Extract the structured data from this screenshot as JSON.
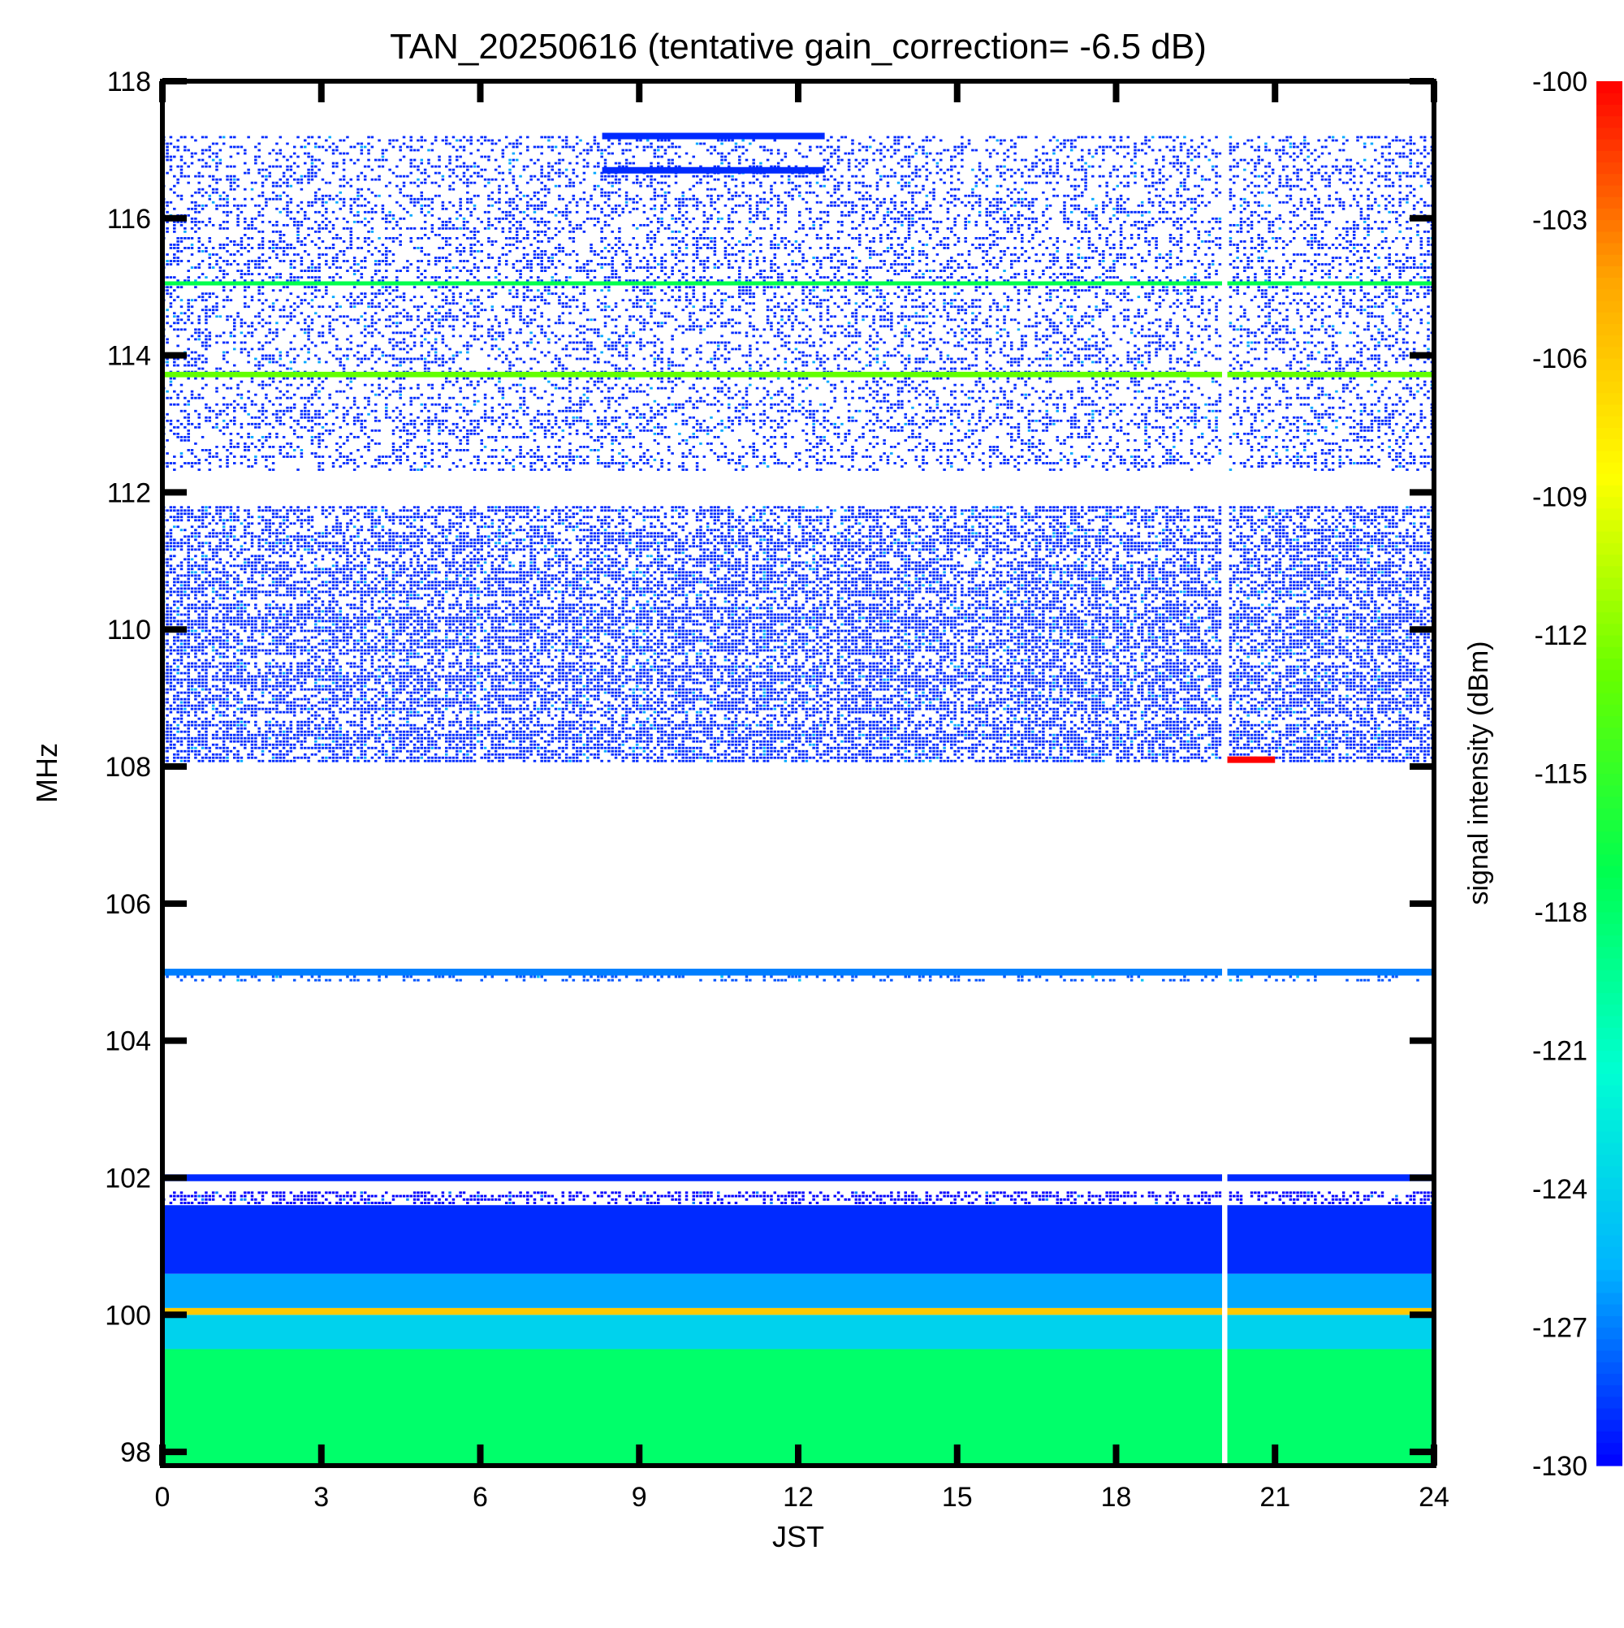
{
  "chart_data": {
    "type": "heatmap",
    "title": "TAN_20250616 (tentative gain_correction= -6.5 dB)",
    "xlabel": "JST",
    "ylabel": "MHz",
    "colorbar_label": "signal intensity (dBm)",
    "xlim": [
      0,
      24
    ],
    "ylim": [
      97.8,
      118
    ],
    "x_ticks": [
      "0",
      "3",
      "6",
      "9",
      "12",
      "15",
      "18",
      "21",
      "24"
    ],
    "y_ticks": [
      "98",
      "100",
      "102",
      "104",
      "106",
      "108",
      "110",
      "112",
      "114",
      "116",
      "118"
    ],
    "colorbar_range": [
      -130,
      -100
    ],
    "colorbar_ticks": [
      "-100",
      "-103",
      "-106",
      "-109",
      "-112",
      "-115",
      "-118",
      "-121",
      "-124",
      "-127",
      "-130"
    ],
    "colormap": [
      "#0000ff",
      "#00b4ff",
      "#00ffd2",
      "#00ff50",
      "#66ff00",
      "#ffff00",
      "#ffa500",
      "#ff0000"
    ],
    "background_color": "#ffffff",
    "grid": false,
    "data_gap_jst": [
      20.0,
      20.1
    ],
    "bands": [
      {
        "freq_range_mhz": [
          97.8,
          99.5
        ],
        "level_dbm": -118,
        "pattern": "solid",
        "note": "green band"
      },
      {
        "freq_range_mhz": [
          99.5,
          100.0
        ],
        "level_dbm": -124,
        "pattern": "solid"
      },
      {
        "freq_range_mhz": [
          100.0,
          100.1
        ],
        "level_dbm": -106,
        "pattern": "solid",
        "note": "orange carrier"
      },
      {
        "freq_range_mhz": [
          100.1,
          100.6
        ],
        "level_dbm": -126,
        "pattern": "solid"
      },
      {
        "freq_range_mhz": [
          100.6,
          101.6
        ],
        "level_dbm": -129,
        "pattern": "solid"
      },
      {
        "freq_range_mhz": [
          101.6,
          101.8
        ],
        "level_dbm": -130,
        "pattern": "dense"
      },
      {
        "freq_range_mhz": [
          101.95,
          102.05
        ],
        "level_dbm": -129,
        "pattern": "carrier"
      },
      {
        "freq_range_mhz": [
          104.85,
          104.95
        ],
        "level_dbm": -128,
        "pattern": "sparse"
      },
      {
        "freq_range_mhz": [
          104.95,
          105.05
        ],
        "level_dbm": -127,
        "pattern": "carrier"
      },
      {
        "freq_range_mhz": [
          108.05,
          111.8
        ],
        "level_dbm": -129,
        "pattern": "dense"
      },
      {
        "freq_range_mhz": [
          112.3,
          117.2
        ],
        "level_dbm": -129,
        "pattern": "medium"
      },
      {
        "freq_range_mhz": [
          113.68,
          113.76
        ],
        "level_dbm": -113,
        "pattern": "carrier"
      },
      {
        "freq_range_mhz": [
          115.02,
          115.08
        ],
        "level_dbm": -117,
        "pattern": "carrier"
      }
    ],
    "features": [
      {
        "jst_range": [
          20.1,
          21.0
        ],
        "freq_mhz": 108.1,
        "level_dbm": -100,
        "note": "red burst"
      },
      {
        "jst_range": [
          8.3,
          12.5
        ],
        "freq_mhz": 116.7,
        "level_dbm": -129,
        "note": "intermittent trace"
      },
      {
        "jst_range": [
          8.3,
          12.5
        ],
        "freq_mhz": 117.2,
        "level_dbm": -129,
        "note": "intermittent trace"
      }
    ]
  }
}
